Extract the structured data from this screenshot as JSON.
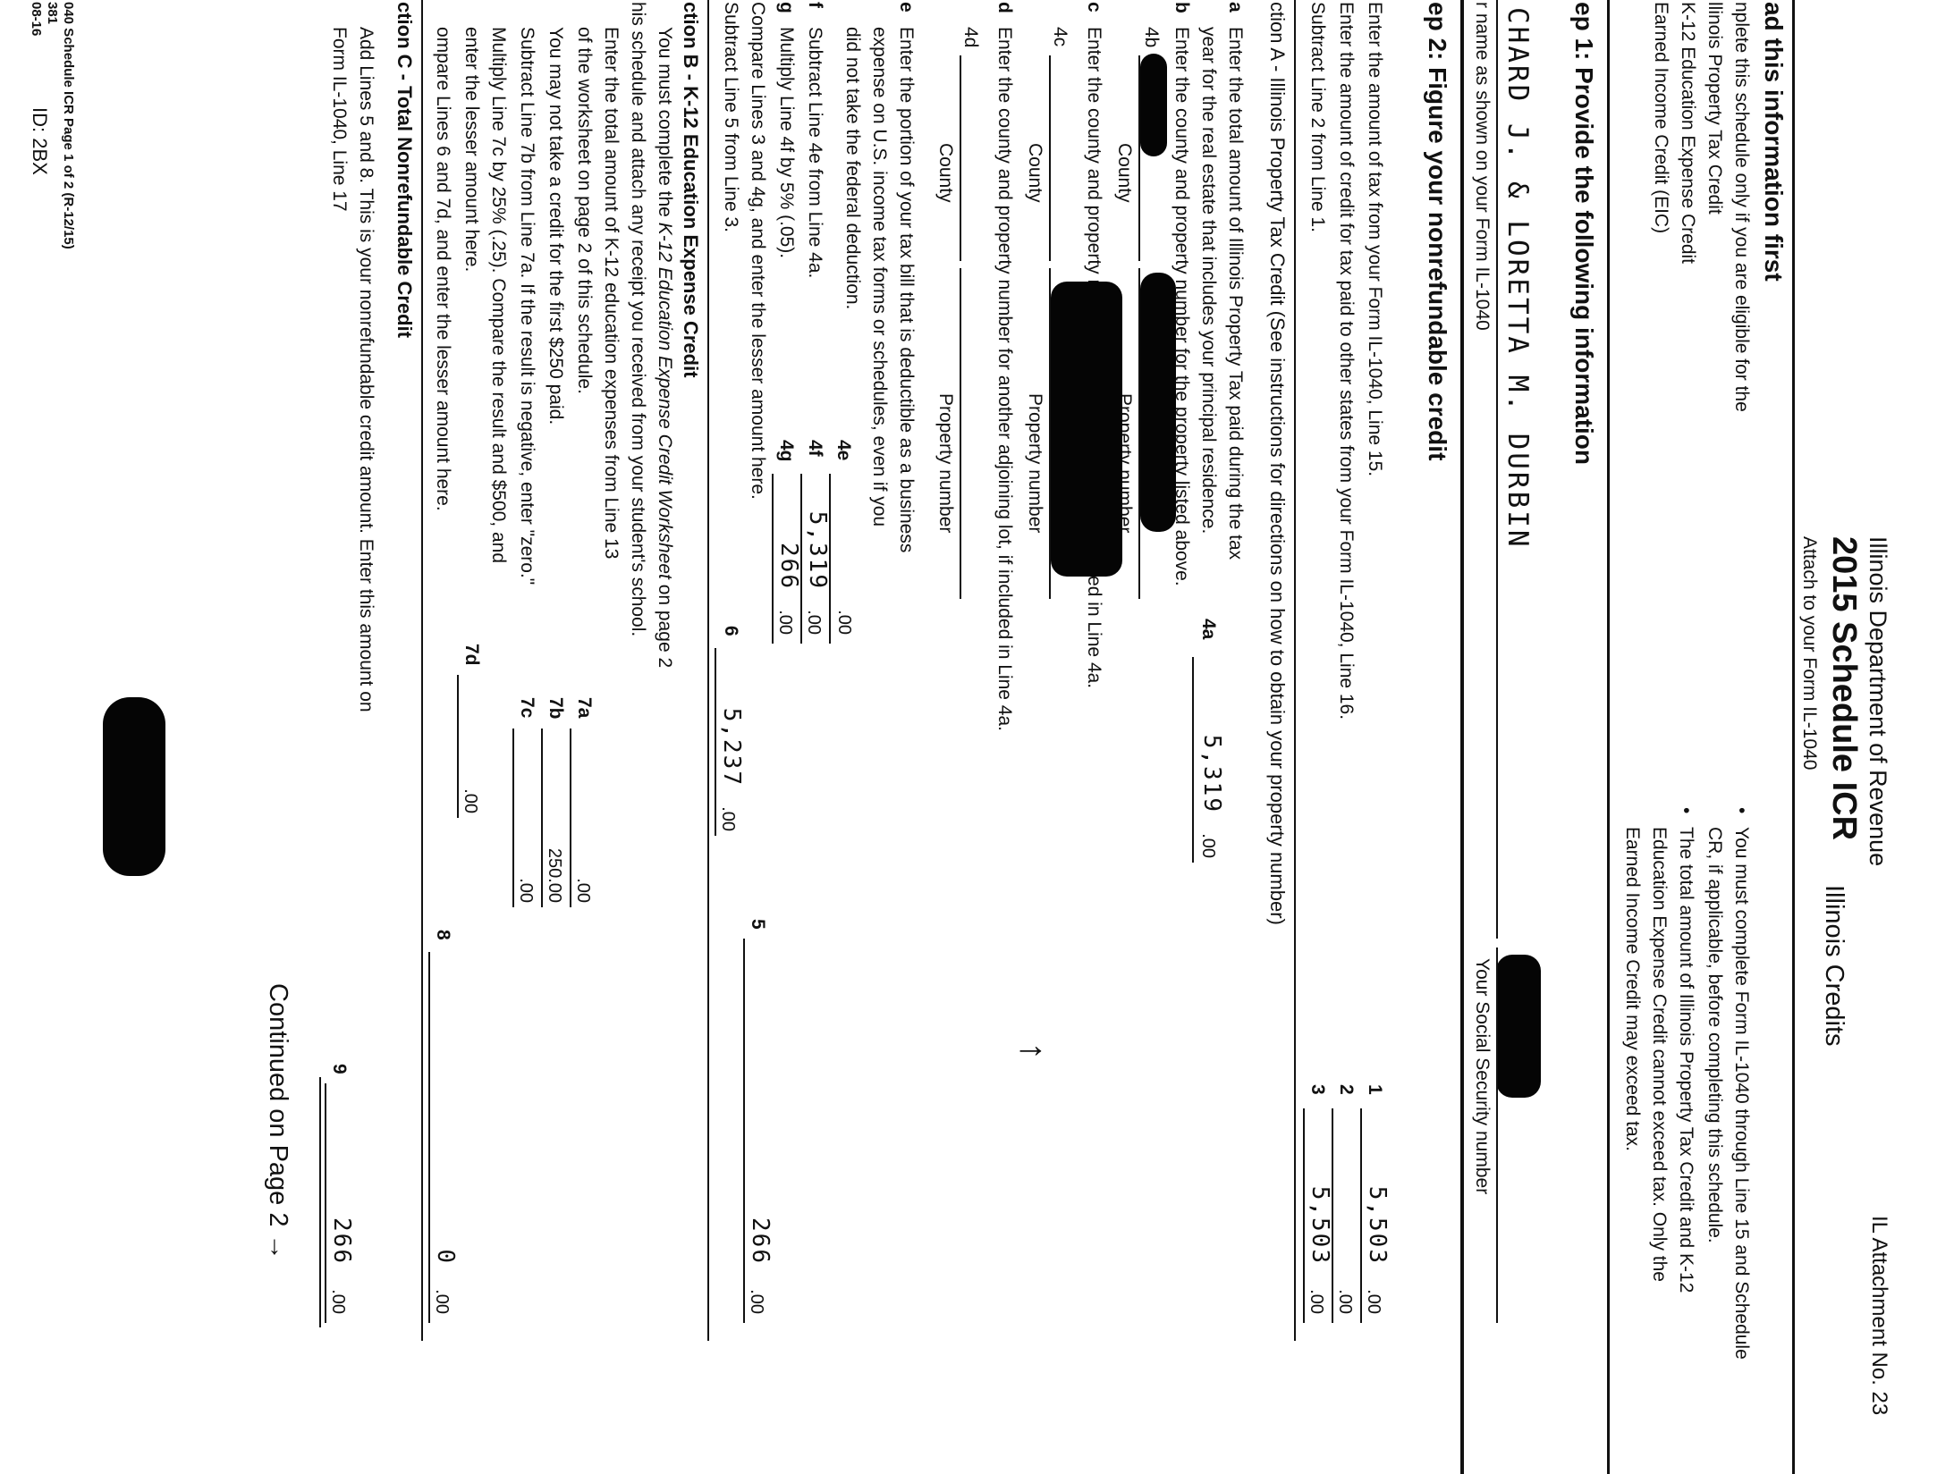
{
  "header": {
    "department": "Illinois Department of Revenue",
    "title": "2015 Schedule ICR",
    "credits_label": "Illinois Credits",
    "attach": "Attach to your Form IL-1040",
    "attachment_no": "IL Attachment No. 23"
  },
  "read_first": {
    "heading": "ad this information first",
    "left": [
      "nplete this schedule only if you are eligible for the",
      "llinois Property Tax Credit",
      "K-12 Education Expense Credit",
      "Earned Income Credit (EIC)"
    ],
    "right_bullet1": [
      "You must complete Form IL-1040 through Line 15 and Schedule",
      "CR, if applicable, before completing this schedule."
    ],
    "right_bullet2": [
      "The total amount of Illinois Property Tax Credit and K-12",
      "Education Expense Credit cannot exceed tax. Only the",
      "Earned Income Credit may exceed tax."
    ]
  },
  "step1": {
    "heading": "ep 1: Provide the following information",
    "name_value": "CHARD J. & LORETTA M. DURBIN",
    "name_caption": "r name as shown on your Form IL-1040",
    "ssn_caption": "Your Social Security number"
  },
  "step2": {
    "heading": "ep 2: Figure your nonrefundable credit",
    "lines": [
      {
        "num": "1",
        "text": "Enter the amount of tax from your Form IL-1040, Line 15.",
        "value": "5,503",
        "cents": ".00"
      },
      {
        "num": "2",
        "text": "Enter the amount of credit for tax paid to other states from your Form IL-1040, Line 16.",
        "value": "",
        "cents": ".00"
      },
      {
        "num": "3",
        "text": "Subtract Line 2 from Line 1.",
        "value": "5,503",
        "cents": ".00"
      }
    ]
  },
  "section_a": {
    "heading": "ction A - Illinois Property Tax Credit (See instructions for directions on how to obtain your property number)",
    "a_letter": "a",
    "a_text1": "Enter the total amount of Illinois Property Tax paid during the tax",
    "a_text2": "year for the real estate that includes your principal residence.",
    "a_num": "4a",
    "a_value": "5,319",
    "a_cents": ".00",
    "b_letter": "b",
    "b_text": "Enter the county and property number for the property listed above.",
    "b_num": "4b",
    "c_letter": "c",
    "c_text": "Enter the county and property number for an adjoining lot, if included in Line 4a.",
    "c_num": "4c",
    "d_letter": "d",
    "d_text": "Enter the county and property number for another adjoining lot, if included in Line 4a.",
    "d_num": "4d",
    "county_label": "County",
    "property_label": "Property number",
    "e_letter": "e",
    "e_text1": "Enter the portion of your tax bill that is deductible as a business",
    "e_text2": "expense on U.S. income tax forms or schedules, even if you",
    "e_text3": "did not take the federal deduction.",
    "e_num": "4e",
    "e_cents": ".00",
    "f_letter": "f",
    "f_text": "Subtract Line 4e from Line 4a.",
    "f_num": "4f",
    "f_value": "5,319",
    "f_cents": ".00",
    "g_letter": "g",
    "g_text": "Multiply Line 4f by 5% (.05).",
    "g_num": "4g",
    "g_value": "266",
    "g_cents": ".00",
    "l5_text": "Compare Lines 3 and 4g, and enter the lesser amount here.",
    "l5_num": "5",
    "l5_value": "266",
    "l5_cents": ".00",
    "l6_text": "Subtract Line 5 from Line 3.",
    "l6_num": "6",
    "l6_value": "5,237",
    "l6_cents": ".00"
  },
  "section_b": {
    "heading": "ction B - K-12 Education Expense Credit",
    "intro1_pre": "You must complete the ",
    "intro1_em": "K-12 Education Expense Credit Worksheet",
    "intro1_post": " on page 2",
    "intro2": "his schedule and attach any receipt you received from your student's school.",
    "a_text1": "Enter the total amount of K-12 education expenses from Line 13",
    "a_text2": "of the worksheet on page 2 of this schedule.",
    "a_num": "7a",
    "a_cents": ".00",
    "b_text": "You may not take a credit for the first $250 paid.",
    "b_num": "7b",
    "b_value": "250.00",
    "c_text": "Subtract Line 7b from Line 7a. If the result is negative, enter \"zero.\"",
    "c_num": "7c",
    "c_cents": ".00",
    "d_text1": "Multiply Line 7c by 25% (.25). Compare the result and $500, and",
    "d_text2": "enter the lesser amount here.",
    "d_num": "7d",
    "d_cents": ".00",
    "l8_text": "ompare Lines 6 and 7d, and enter the lesser amount here.",
    "l8_num": "8",
    "l8_value": "0",
    "l8_cents": ".00"
  },
  "section_c": {
    "heading": "ction C - Total Nonrefundable Credit",
    "l9_text1": "Add Lines 5 and 8. This is your nonrefundable credit amount. Enter this amount on",
    "l9_text2": "Form IL-1040, Line 17",
    "l9_num": "9",
    "l9_value": "266",
    "l9_cents": ".00"
  },
  "continued": "Continued on Page 2",
  "footer": {
    "line1": "040 Schedule ICR Page 1 of 2 (R-12/15)",
    "line2": "381",
    "line3": "08-16",
    "id": "ID: 2BX"
  }
}
